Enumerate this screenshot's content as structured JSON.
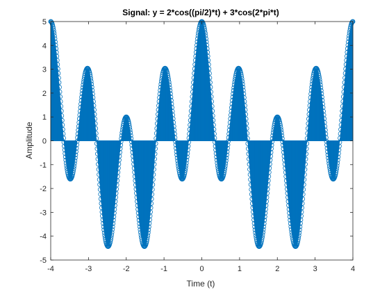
{
  "chart_data": {
    "type": "stem",
    "title": "Signal: y = 2*cos((pi/2)*t) + 3*cos(2*pi*t)",
    "xlabel": "Time (t)",
    "ylabel": "Amplitude",
    "xlim": [
      -4,
      4
    ],
    "ylim": [
      -5,
      5
    ],
    "x_ticks": [
      -4,
      -3,
      -2,
      -1,
      0,
      1,
      2,
      3,
      4
    ],
    "y_ticks": [
      -5,
      -4,
      -3,
      -2,
      -1,
      0,
      1,
      2,
      3,
      4,
      5
    ],
    "grid": false,
    "sample_step": 0.01,
    "series": [
      {
        "color": "#0072BD",
        "marker": "circle",
        "t_range": [
          -4,
          4
        ],
        "key_points": [
          {
            "t": -4,
            "y": 5
          },
          {
            "t": -3.5,
            "y": -1.59
          },
          {
            "t": -3,
            "y": 3
          },
          {
            "t": -2.5,
            "y": -4.41
          },
          {
            "t": -2,
            "y": 1
          },
          {
            "t": -1.5,
            "y": -4.41
          },
          {
            "t": -1,
            "y": 3
          },
          {
            "t": -0.5,
            "y": -1.59
          },
          {
            "t": 0,
            "y": 5
          },
          {
            "t": 0.5,
            "y": -1.59
          },
          {
            "t": 1,
            "y": 3
          },
          {
            "t": 1.5,
            "y": -4.41
          },
          {
            "t": 2,
            "y": 1
          },
          {
            "t": 2.5,
            "y": -4.41
          },
          {
            "t": 3,
            "y": 3
          },
          {
            "t": 3.5,
            "y": -1.59
          },
          {
            "t": 4,
            "y": 5
          }
        ]
      }
    ]
  }
}
